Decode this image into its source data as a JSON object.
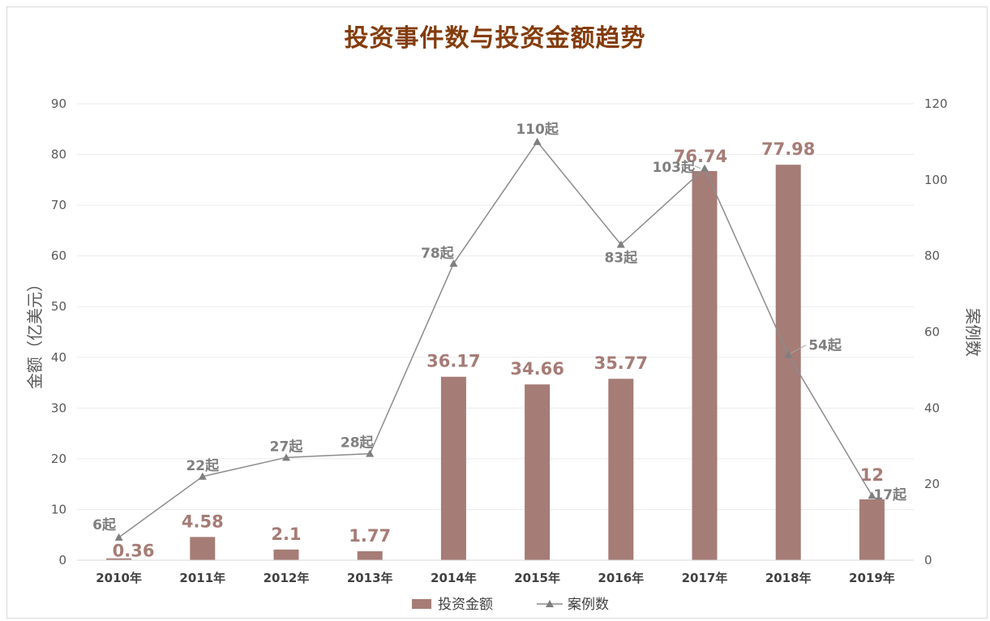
{
  "colors": {
    "bar": "#a67c76",
    "line": "#8c8c8c",
    "grid": "#ebebeb",
    "title": "#843c0c"
  },
  "chart_data": {
    "type": "bar",
    "title": "投资事件数与投资金额趋势",
    "categories": [
      "2010年",
      "2011年",
      "2012年",
      "2013年",
      "2014年",
      "2015年",
      "2016年",
      "2017年",
      "2018年",
      "2019年"
    ],
    "ylabel": "金额（亿美元）",
    "y2label": "案例数",
    "ylim": [
      0,
      90
    ],
    "y2lim": [
      0,
      120
    ],
    "yticks": [
      "0",
      "10",
      "20",
      "30",
      "40",
      "50",
      "60",
      "70",
      "80",
      "90"
    ],
    "y2ticks": [
      "0",
      "20",
      "40",
      "60",
      "80",
      "100",
      "120"
    ],
    "grid": true,
    "legend_position": "bottom",
    "series": [
      {
        "name": "投资金额",
        "type": "bar",
        "axis": "left",
        "values": [
          0.36,
          4.58,
          2.1,
          1.77,
          36.17,
          34.66,
          35.77,
          76.74,
          77.98,
          12
        ],
        "labels": [
          "0.36",
          "4.58",
          "2.1",
          "1.77",
          "36.17",
          "34.66",
          "35.77",
          "76.74",
          "77.98",
          "12"
        ]
      },
      {
        "name": "案例数",
        "type": "line",
        "axis": "right",
        "marker": "triangle",
        "values": [
          6,
          22,
          27,
          28,
          78,
          110,
          83,
          103,
          54,
          17
        ],
        "labels": [
          "6起",
          "22起",
          "27起",
          "28起",
          "78起",
          "110起",
          "83起",
          "103起",
          "54起",
          "17起"
        ]
      }
    ]
  }
}
